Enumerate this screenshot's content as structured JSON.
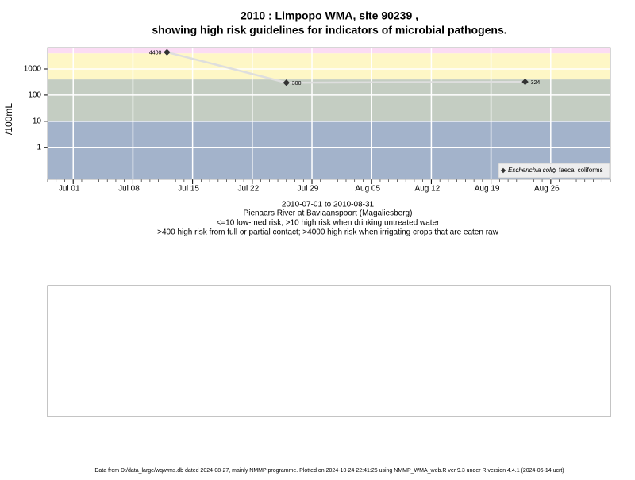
{
  "chart_data": {
    "type": "line",
    "title": "2010 : Limpopo WMA, site 90239 ,",
    "subtitle": "showing high risk guidelines for indicators of microbial pathogens.",
    "y_label": "/100mL",
    "x": [
      "2010-07-12",
      "2010-07-26",
      "2010-08-23"
    ],
    "series": [
      {
        "name": "Escherichia coli",
        "color": "#333333",
        "values": [
          4400,
          300,
          324
        ]
      },
      {
        "name": "faecal coliforms",
        "color": "#333333",
        "values": [
          null,
          null,
          null
        ]
      }
    ],
    "xlim": [
      "2010-06-28",
      "2010-09-02"
    ],
    "xticks": [
      {
        "value": "2010-07-01",
        "label": "Jul 01"
      },
      {
        "value": "2010-07-08",
        "label": "Jul 08"
      },
      {
        "value": "2010-07-15",
        "label": "Jul 15"
      },
      {
        "value": "2010-07-22",
        "label": "Jul 22"
      },
      {
        "value": "2010-07-29",
        "label": "Jul 29"
      },
      {
        "value": "2010-08-05",
        "label": "Aug 05"
      },
      {
        "value": "2010-08-12",
        "label": "Aug 12"
      },
      {
        "value": "2010-08-19",
        "label": "Aug 19"
      },
      {
        "value": "2010-08-26",
        "label": "Aug 26"
      }
    ],
    "ylim": [
      0.06,
      6600
    ],
    "yticks": [
      1,
      10,
      100,
      1000
    ],
    "log_y": true,
    "grid": true,
    "legend": "bottom-right",
    "bands": [
      {
        "from": 0.06,
        "to": 10,
        "color": "#a3b3cb"
      },
      {
        "from": 10,
        "to": 400,
        "color": "#c4cdc2"
      },
      {
        "from": 400,
        "to": 4000,
        "color": "#fef7c6"
      },
      {
        "from": 4000,
        "to": 6600,
        "color": "#fbdcf4"
      }
    ],
    "notes": [
      "2010-07-01 to 2010-08-31",
      "Pienaars River at Baviaanspoort (Magaliesberg)",
      "<=10 low-med risk; >10 high risk when drinking untreated water",
      ">400 high risk from full or partial contact; >4000 high risk when irrigating crops that are eaten raw"
    ],
    "footer": "Data from D:/data_large/wq/wms.db dated 2024-08-27, mainly NMMP programme. Plotted on 2024-10-24 22:41:26 using NMMP_WMA_web.R ver 9.3 under R version 4.4.1 (2024-06-14 ucrt)"
  }
}
